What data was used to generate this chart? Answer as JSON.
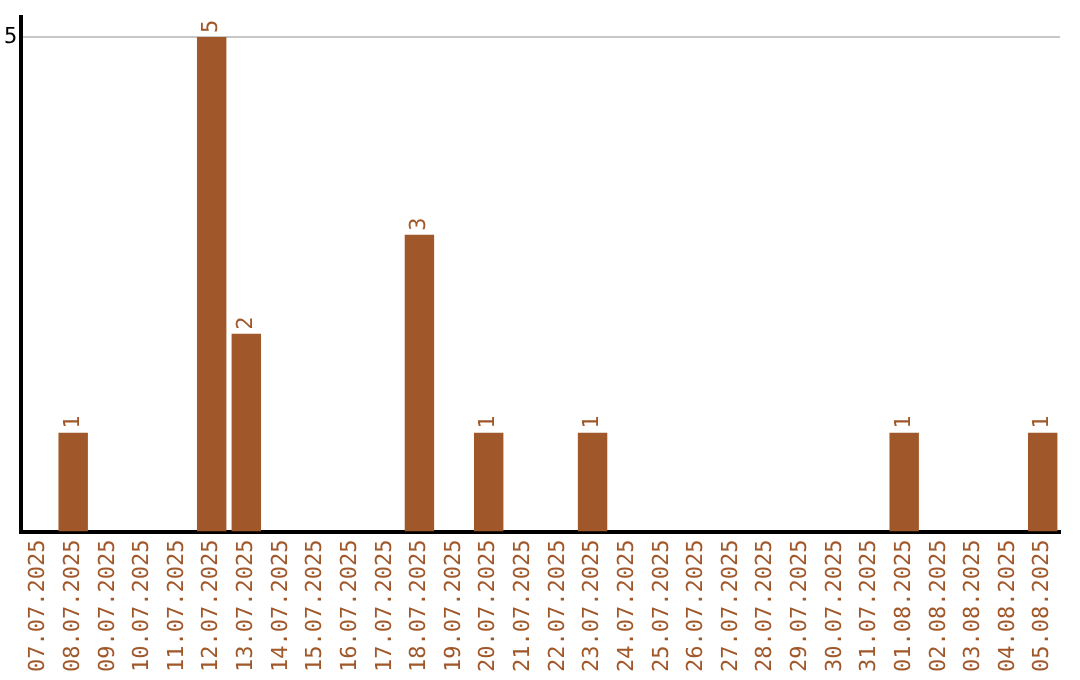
{
  "chart_data": {
    "type": "bar",
    "categories": [
      "07.07.2025",
      "08.07.2025",
      "09.07.2025",
      "10.07.2025",
      "11.07.2025",
      "12.07.2025",
      "13.07.2025",
      "14.07.2025",
      "15.07.2025",
      "16.07.2025",
      "17.07.2025",
      "18.07.2025",
      "19.07.2025",
      "20.07.2025",
      "21.07.2025",
      "22.07.2025",
      "23.07.2025",
      "24.07.2025",
      "25.07.2025",
      "26.07.2025",
      "27.07.2025",
      "28.07.2025",
      "29.07.2025",
      "30.07.2025",
      "31.07.2025",
      "01.08.2025",
      "02.08.2025",
      "03.08.2025",
      "04.08.2025",
      "05.08.2025"
    ],
    "values": [
      0,
      1,
      0,
      0,
      0,
      5,
      2,
      0,
      0,
      0,
      0,
      3,
      0,
      1,
      0,
      0,
      1,
      0,
      0,
      0,
      0,
      0,
      0,
      0,
      0,
      1,
      0,
      0,
      0,
      1
    ],
    "value_labels": [
      null,
      "1",
      null,
      null,
      null,
      "5",
      "2",
      null,
      null,
      null,
      null,
      "3",
      null,
      "1",
      null,
      null,
      "1",
      null,
      null,
      null,
      null,
      null,
      null,
      null,
      null,
      "1",
      null,
      null,
      null,
      "1"
    ],
    "color": "#a0572a",
    "ylim": [
      0,
      5.2
    ],
    "yticks": [
      5
    ],
    "grid": "y",
    "legend": false
  }
}
